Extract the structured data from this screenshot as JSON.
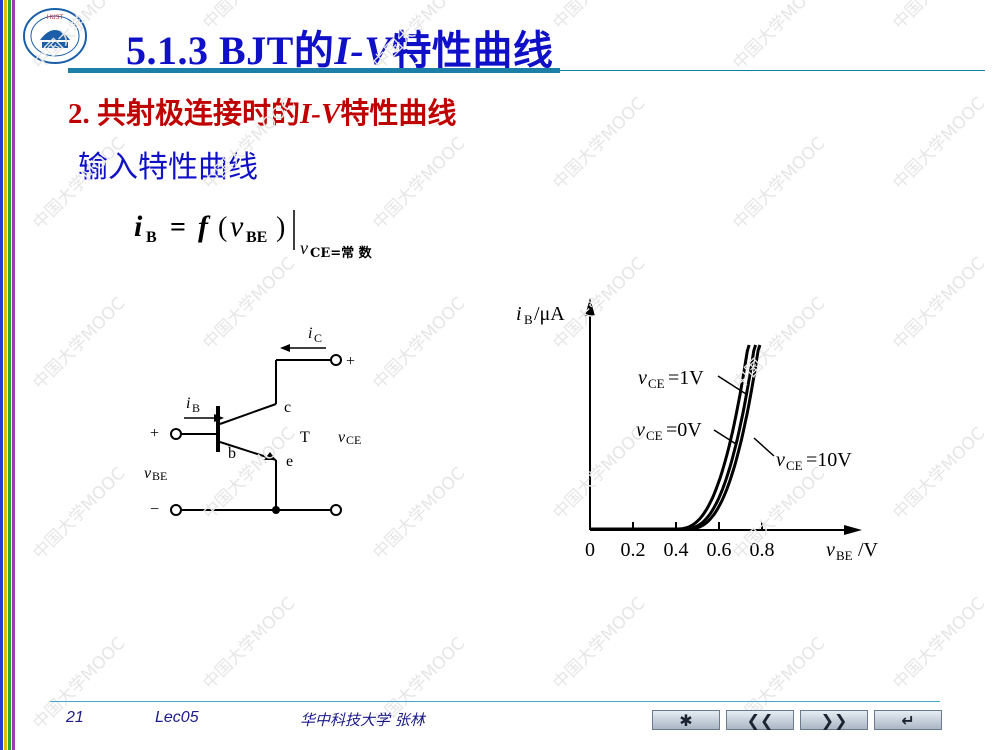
{
  "slide": {
    "title_prefix": "5.1.3  BJT的",
    "title_iv": "I-V",
    "title_suffix": "特性曲线",
    "section_prefix": "2. 共射极连接时的",
    "section_iv": "I-V",
    "section_suffix": "特性曲线",
    "subsection": "输入特性曲线"
  },
  "formula": {
    "lhs": "i",
    "lhs_sub": "B",
    "eq": "=",
    "func": "f",
    "open": "(",
    "var": "v",
    "var_sub": "BE",
    "close": ")",
    "cond_var": "v",
    "cond_text": "CE=常 数"
  },
  "circuit": {
    "ic_label": "i",
    "ic_sub": "C",
    "ib_label": "i",
    "ib_sub": "B",
    "c_label": "c",
    "b_label": "b",
    "e_label": "e",
    "t_label": "T",
    "vce_label": "v",
    "vce_sub": "CE",
    "vbe_label": "v",
    "vbe_sub": "BE",
    "plus_in": "+",
    "minus_in": "−",
    "plus_out": "+"
  },
  "chart_data": {
    "type": "line",
    "ylabel_var": "i",
    "ylabel_sub": "B",
    "ylabel_unit": "/μA",
    "xlabel_var": "v",
    "xlabel_sub": "BE",
    "xlabel_unit": "/V",
    "x_ticks": [
      "0",
      "0.2",
      "0.4",
      "0.6",
      "0.8"
    ],
    "xlim": [
      0,
      1.0
    ],
    "series": [
      {
        "label_var": "v",
        "label_sub": "CE",
        "label_value": "=0V",
        "threshold": 0.4
      },
      {
        "label_var": "v",
        "label_sub": "CE",
        "label_value": "=1V",
        "threshold": 0.43
      },
      {
        "label_var": "v",
        "label_sub": "CE",
        "label_value": "=10V",
        "threshold": 0.45
      }
    ]
  },
  "footer": {
    "page": "21",
    "lecture": "Lec05",
    "school": "华中科技大学    张林"
  },
  "nav": {
    "home": "✱",
    "prev": "❮❮",
    "next": "❯❯",
    "back": "↵"
  },
  "watermark": {
    "text": "中国大学MOOC"
  },
  "colors": {
    "title": "#1010c8",
    "section": "#c00000",
    "accent": "#1c7fa8"
  }
}
